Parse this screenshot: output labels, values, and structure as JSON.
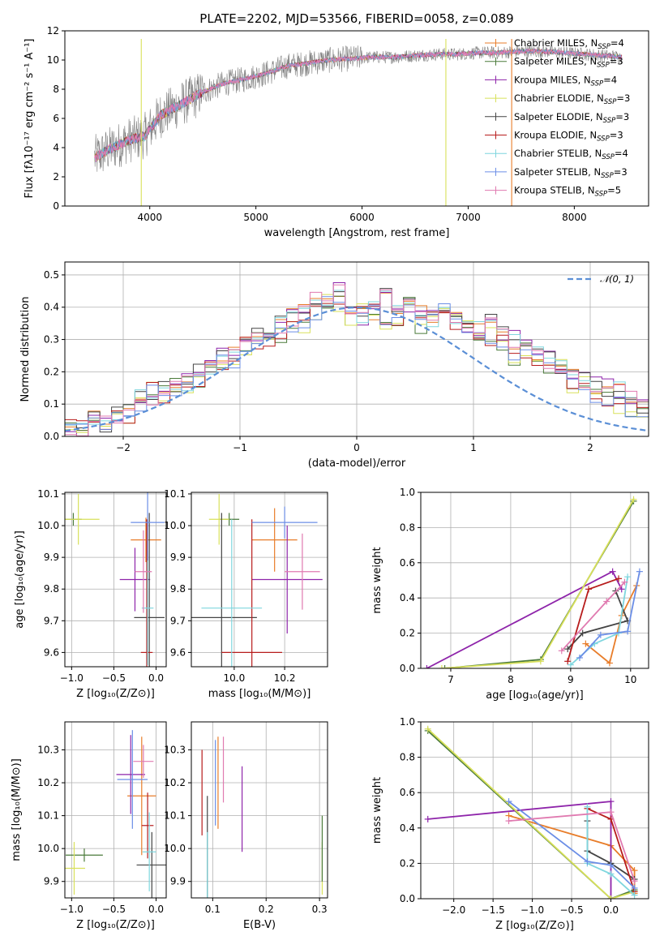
{
  "colors": [
    "#e87d2a",
    "#4a7a3a",
    "#8e24aa",
    "#d8e05a",
    "#444444",
    "#b71c1c",
    "#7fd6de",
    "#6b8ee6",
    "#e07ab0"
  ],
  "chart_data": [
    {
      "id": "spectrum",
      "type": "line",
      "title": "PLATE=2202, MJD=53566, FIBERID=0058, z=0.089",
      "xlabel": "wavelength [Angstrom, rest frame]",
      "ylabel": "Flux [fλ10⁻¹⁷ erg cm⁻² s⁻¹ A⁻¹]",
      "xlim": [
        3200,
        8700
      ],
      "ylim": [
        0,
        12
      ],
      "xticks": [
        4000,
        5000,
        6000,
        7000,
        8000
      ],
      "yticks": [
        0,
        2,
        4,
        6,
        8,
        10,
        12
      ],
      "grid": false,
      "legend_position": "top-right",
      "data_range": [
        3480,
        8450
      ],
      "continuum": {
        "x": [
          3480,
          3600,
          3800,
          3950,
          4100,
          4300,
          4500,
          4700,
          4900,
          5100,
          5300,
          5500,
          5700,
          5900,
          6100,
          6300,
          6500,
          6700,
          6900,
          7100,
          7300,
          7500,
          7700,
          7900,
          8100,
          8300,
          8450
        ],
        "y": [
          3.3,
          3.8,
          4.5,
          4.8,
          6.2,
          7.0,
          7.8,
          8.4,
          8.7,
          9.1,
          9.6,
          9.8,
          10.0,
          10.1,
          10.2,
          10.2,
          10.3,
          10.4,
          10.4,
          10.5,
          10.5,
          10.6,
          10.6,
          10.5,
          10.4,
          10.3,
          10.2
        ]
      },
      "series": [
        {
          "name": "Chabrier MILES, N_SSP=4",
          "label_main": "Chabrier MILES, N",
          "label_sub": "SSP",
          "label_tail": "=4"
        },
        {
          "name": "Salpeter MILES, N_SSP=3",
          "label_main": "Salpeter MILES, N",
          "label_sub": "SSP",
          "label_tail": "=3"
        },
        {
          "name": "Kroupa MILES, N_SSP=4",
          "label_main": "Kroupa MILES, N",
          "label_sub": "SSP",
          "label_tail": "=4"
        },
        {
          "name": "Chabrier ELODIE, N_SSP=3",
          "label_main": "Chabrier ELODIE, N",
          "label_sub": "SSP",
          "label_tail": "=3"
        },
        {
          "name": "Salpeter ELODIE, N_SSP=3",
          "label_main": "Salpeter ELODIE, N",
          "label_sub": "SSP",
          "label_tail": "=3"
        },
        {
          "name": "Kroupa ELODIE, N_SSP=3",
          "label_main": "Kroupa ELODIE, N",
          "label_sub": "SSP",
          "label_tail": "=3"
        },
        {
          "name": "Chabrier STELIB, N_SSP=4",
          "label_main": "Chabrier STELIB, N",
          "label_sub": "SSP",
          "label_tail": "=4"
        },
        {
          "name": "Salpeter STELIB, N_SSP=3",
          "label_main": "Salpeter STELIB, N",
          "label_sub": "SSP",
          "label_tail": "=3"
        },
        {
          "name": "Kroupa STELIB, N_SSP=5",
          "label_main": "Kroupa STELIB, N",
          "label_sub": "SSP",
          "label_tail": "=5"
        }
      ],
      "vertical_lines": [
        {
          "x": 3920,
          "color_index": 3
        },
        {
          "x": 6790,
          "color_index": 3
        },
        {
          "x": 7410,
          "color_index": 0
        }
      ]
    },
    {
      "id": "residuals",
      "type": "histogram",
      "xlabel": "(data-model)/error",
      "ylabel": "Normed distribution",
      "xlim": [
        -2.5,
        2.5
      ],
      "ylim": [
        0,
        0.54
      ],
      "xticks": [
        -2,
        -1,
        0,
        1,
        2
      ],
      "xtick_labels": [
        "−2",
        "−1",
        "0",
        "1",
        "2"
      ],
      "yticks": [
        0.0,
        0.1,
        0.2,
        0.3,
        0.4,
        0.5
      ],
      "grid": true,
      "bin_width": 0.1,
      "legend_label": "𝒩(0, 1)",
      "legend_position": "top-right",
      "bin_heights_by_series": [
        [
          0.03,
          0.02,
          0.05,
          0.04,
          0.07,
          0.09,
          0.12,
          0.11,
          0.14,
          0.15,
          0.17,
          0.2,
          0.21,
          0.25,
          0.27,
          0.29,
          0.31,
          0.33,
          0.35,
          0.37,
          0.39,
          0.43,
          0.4,
          0.45,
          0.41,
          0.37,
          0.39,
          0.44,
          0.38,
          0.4,
          0.39,
          0.36,
          0.4,
          0.36,
          0.35,
          0.33,
          0.36,
          0.31,
          0.3,
          0.28,
          0.26,
          0.24,
          0.22,
          0.19,
          0.18,
          0.16,
          0.15,
          0.14,
          0.11,
          0.09
        ],
        [
          0.04,
          0.03,
          0.04,
          0.05,
          0.06,
          0.07,
          0.1,
          0.14,
          0.13,
          0.15,
          0.16,
          0.18,
          0.22,
          0.23,
          0.24,
          0.28,
          0.3,
          0.29,
          0.32,
          0.35,
          0.34,
          0.38,
          0.42,
          0.41,
          0.36,
          0.4,
          0.38,
          0.34,
          0.37,
          0.42,
          0.34,
          0.36,
          0.41,
          0.35,
          0.33,
          0.3,
          0.31,
          0.29,
          0.25,
          0.26,
          0.23,
          0.2,
          0.22,
          0.16,
          0.17,
          0.13,
          0.12,
          0.1,
          0.09,
          0.08
        ]
      ],
      "density_curve": "standard_normal"
    },
    {
      "id": "age_vs_Z",
      "type": "errorbar",
      "xlabel": "Z [log₁₀(Z/Z⊙)]",
      "ylabel": "age  [log₁₀(age/yr)]",
      "xlim": [
        -1.08,
        0.12
      ],
      "ylim": [
        9.555,
        10.105
      ],
      "xticks": [
        -1.0,
        -0.5,
        0.0
      ],
      "xtick_labels": [
        "−1.0",
        "−0.5",
        "0.0"
      ],
      "yticks": [
        9.6,
        9.7,
        9.8,
        9.9,
        10.0,
        10.1
      ],
      "grid": true,
      "points": [
        {
          "x": -0.12,
          "y": 9.955,
          "xerr": 0.18,
          "yerr": 0.07,
          "color_index": 0
        },
        {
          "x": -0.98,
          "y": 10.02,
          "xerr": 0.1,
          "yerr": 0.02,
          "color_index": 1
        },
        {
          "x": -0.25,
          "y": 9.83,
          "xerr": 0.18,
          "yerr": 0.1,
          "color_index": 2
        },
        {
          "x": -0.92,
          "y": 10.02,
          "xerr": 0.25,
          "yerr": 0.08,
          "color_index": 3
        },
        {
          "x": -0.08,
          "y": 9.71,
          "xerr": 0.18,
          "yerr": 0.33,
          "color_index": 4
        },
        {
          "x": -0.11,
          "y": 9.6,
          "xerr": 0.07,
          "yerr": 0.42,
          "color_index": 5
        },
        {
          "x": -0.1,
          "y": 9.74,
          "xerr": 0.07,
          "yerr": 0.18,
          "color_index": 6
        },
        {
          "x": -0.1,
          "y": 10.01,
          "xerr": 0.2,
          "yerr": 0.12,
          "color_index": 7
        },
        {
          "x": -0.15,
          "y": 9.855,
          "xerr": 0.1,
          "yerr": 0.13,
          "color_index": 8
        }
      ]
    },
    {
      "id": "age_vs_mass",
      "type": "errorbar",
      "xlabel": "mass [log₁₀(M/M⊙)]",
      "ylabel": "",
      "xlim": [
        9.83,
        10.37
      ],
      "ylim": [
        9.555,
        10.105
      ],
      "xticks": [
        10.0,
        10.2
      ],
      "xtick_labels": [
        "10.0",
        "10.2"
      ],
      "yticks": [
        9.6,
        9.7,
        9.8,
        9.9,
        10.0,
        10.1
      ],
      "grid": true,
      "points": [
        {
          "x": 10.16,
          "y": 9.955,
          "xerr": 0.09,
          "yerr": 0.1,
          "color_index": 0
        },
        {
          "x": 9.98,
          "y": 10.02,
          "xerr": 0.04,
          "yerr": 0.02,
          "color_index": 1
        },
        {
          "x": 10.21,
          "y": 9.83,
          "xerr": 0.14,
          "yerr": 0.17,
          "color_index": 2
        },
        {
          "x": 9.94,
          "y": 10.02,
          "xerr": 0.04,
          "yerr": 0.08,
          "color_index": 3
        },
        {
          "x": 9.95,
          "y": 9.71,
          "xerr": 0.14,
          "yerr": 0.33,
          "color_index": 4
        },
        {
          "x": 10.07,
          "y": 9.6,
          "xerr": 0.12,
          "yerr": 0.42,
          "color_index": 5
        },
        {
          "x": 9.99,
          "y": 9.74,
          "xerr": 0.12,
          "yerr": 0.28,
          "color_index": 6
        },
        {
          "x": 10.2,
          "y": 10.01,
          "xerr": 0.13,
          "yerr": 0.05,
          "color_index": 7
        },
        {
          "x": 10.27,
          "y": 9.855,
          "xerr": 0.07,
          "yerr": 0.12,
          "color_index": 8
        }
      ]
    },
    {
      "id": "massweight_vs_age",
      "type": "line",
      "xlabel": "age  [log₁₀(age/yr)]",
      "ylabel": "mass weight",
      "xlim": [
        6.5,
        10.3
      ],
      "ylim": [
        0,
        1.0
      ],
      "xticks": [
        7,
        8,
        9,
        10
      ],
      "yticks": [
        0.0,
        0.2,
        0.4,
        0.6,
        0.8,
        1.0
      ],
      "grid": true,
      "series": [
        {
          "color_index": 0,
          "x": [
            9.25,
            9.65,
            9.85,
            10.1
          ],
          "y": [
            0.14,
            0.03,
            0.3,
            0.47
          ]
        },
        {
          "color_index": 1,
          "x": [
            6.9,
            8.5,
            10.05
          ],
          "y": [
            0.0,
            0.05,
            0.95
          ]
        },
        {
          "color_index": 2,
          "x": [
            6.6,
            9.7,
            9.85
          ],
          "y": [
            0.0,
            0.55,
            0.45
          ]
        },
        {
          "color_index": 3,
          "x": [
            6.85,
            8.5,
            10.05
          ],
          "y": [
            0.0,
            0.04,
            0.96
          ]
        },
        {
          "color_index": 4,
          "x": [
            8.95,
            9.2,
            9.95,
            9.75
          ],
          "y": [
            0.11,
            0.2,
            0.27,
            0.44
          ]
        },
        {
          "color_index": 5,
          "x": [
            8.95,
            9.3,
            9.8
          ],
          "y": [
            0.04,
            0.45,
            0.51
          ]
        },
        {
          "color_index": 6,
          "x": [
            9.0,
            9.4,
            9.8,
            9.95
          ],
          "y": [
            0.02,
            0.14,
            0.2,
            0.52
          ]
        },
        {
          "color_index": 7,
          "x": [
            9.15,
            9.5,
            9.95,
            10.15
          ],
          "y": [
            0.06,
            0.19,
            0.21,
            0.55
          ]
        },
        {
          "color_index": 8,
          "x": [
            8.85,
            9.6,
            9.9
          ],
          "y": [
            0.1,
            0.38,
            0.49
          ]
        }
      ]
    },
    {
      "id": "mass_vs_Z",
      "type": "errorbar",
      "xlabel": "Z [log₁₀(Z/Z⊙)]",
      "ylabel": "mass [log₁₀(M/M⊙)]",
      "xlim": [
        -1.08,
        0.12
      ],
      "ylim": [
        9.85,
        10.385
      ],
      "xticks": [
        -1.0,
        -0.5,
        0.0
      ],
      "xtick_labels": [
        "−1.0",
        "−0.5",
        "0.0"
      ],
      "yticks": [
        9.9,
        10.0,
        10.1,
        10.2,
        10.3
      ],
      "grid": true,
      "points": [
        {
          "x": -0.17,
          "y": 10.16,
          "xerr": 0.17,
          "yerr": 0.18,
          "color_index": 0
        },
        {
          "x": -0.85,
          "y": 9.98,
          "xerr": 0.22,
          "yerr": 0.02,
          "color_index": 1
        },
        {
          "x": -0.3,
          "y": 10.225,
          "xerr": 0.17,
          "yerr": 0.12,
          "color_index": 2
        },
        {
          "x": -0.97,
          "y": 9.94,
          "xerr": 0.13,
          "yerr": 0.08,
          "color_index": 3
        },
        {
          "x": -0.05,
          "y": 9.95,
          "xerr": 0.18,
          "yerr": 0.1,
          "color_index": 4
        },
        {
          "x": -0.1,
          "y": 10.07,
          "xerr": 0.07,
          "yerr": 0.1,
          "color_index": 5
        },
        {
          "x": -0.08,
          "y": 9.99,
          "xerr": 0.08,
          "yerr": 0.12,
          "color_index": 6
        },
        {
          "x": -0.28,
          "y": 10.21,
          "xerr": 0.18,
          "yerr": 0.15,
          "color_index": 7
        },
        {
          "x": -0.15,
          "y": 10.265,
          "xerr": 0.12,
          "yerr": 0.05,
          "color_index": 8
        }
      ]
    },
    {
      "id": "mass_vs_EBV",
      "type": "errorbar",
      "xlabel": "E(B-V)",
      "ylabel": "",
      "xlim": [
        0.06,
        0.315
      ],
      "ylim": [
        9.85,
        10.385
      ],
      "xticks": [
        0.1,
        0.2,
        0.3
      ],
      "xtick_labels": [
        "0.1",
        "0.2",
        "0.3"
      ],
      "yticks": [
        9.9,
        10.0,
        10.1,
        10.2,
        10.3
      ],
      "grid": true,
      "points": [
        {
          "x": 0.305,
          "y": 9.94,
          "xerr": 0,
          "yerr": 0.08,
          "color_index": 3
        },
        {
          "x": 0.305,
          "y": 10.0,
          "xerr": 0,
          "yerr": 0.1,
          "color_index": 1
        },
        {
          "x": 0.09,
          "y": 10.0,
          "xerr": 0,
          "yerr": 0.16,
          "color_index": 4
        },
        {
          "x": 0.08,
          "y": 10.17,
          "xerr": 0,
          "yerr": 0.13,
          "color_index": 5
        },
        {
          "x": 0.09,
          "y": 9.95,
          "xerr": 0,
          "yerr": 0.1,
          "color_index": 6
        },
        {
          "x": 0.105,
          "y": 10.2,
          "xerr": 0,
          "yerr": 0.13,
          "color_index": 7
        },
        {
          "x": 0.11,
          "y": 10.2,
          "xerr": 0,
          "yerr": 0.14,
          "color_index": 0
        },
        {
          "x": 0.12,
          "y": 10.24,
          "xerr": 0,
          "yerr": 0.1,
          "color_index": 8
        },
        {
          "x": 0.155,
          "y": 10.12,
          "xerr": 0,
          "yerr": 0.13,
          "color_index": 2
        }
      ]
    },
    {
      "id": "massweight_vs_Z",
      "type": "line",
      "xlabel": "Z [log₁₀(Z/Z⊙)]",
      "ylabel": "mass weight",
      "xlim": [
        -2.42,
        0.48
      ],
      "ylim": [
        0,
        1.0
      ],
      "xticks": [
        -2.0,
        -1.5,
        -1.0,
        -0.5,
        0.0
      ],
      "xtick_labels": [
        "−2.0",
        "−1.5",
        "−1.0",
        "−0.5",
        "0.0"
      ],
      "yticks": [
        0.0,
        0.2,
        0.4,
        0.6,
        0.8,
        1.0
      ],
      "grid": true,
      "series": [
        {
          "color_index": 0,
          "x": [
            -1.3,
            0.0,
            0.3,
            0.3
          ],
          "y": [
            0.47,
            0.3,
            0.16,
            0.03
          ]
        },
        {
          "color_index": 1,
          "x": [
            -2.33,
            0.0,
            0.3
          ],
          "y": [
            0.95,
            0.0,
            0.05
          ]
        },
        {
          "color_index": 2,
          "x": [
            -2.33,
            0.0,
            0.0
          ],
          "y": [
            0.45,
            0.55,
            0.0
          ]
        },
        {
          "color_index": 3,
          "x": [
            -2.33,
            0.0,
            0.3
          ],
          "y": [
            0.96,
            0.0,
            0.04
          ]
        },
        {
          "color_index": 4,
          "x": [
            -0.3,
            -0.3,
            0.0,
            0.3
          ],
          "y": [
            0.44,
            0.27,
            0.2,
            0.11
          ]
        },
        {
          "color_index": 5,
          "x": [
            -0.3,
            0.0,
            0.3
          ],
          "y": [
            0.51,
            0.45,
            0.04
          ]
        },
        {
          "color_index": 6,
          "x": [
            -0.3,
            -0.3,
            0.0,
            0.3
          ],
          "y": [
            0.52,
            0.2,
            0.14,
            0.02
          ]
        },
        {
          "color_index": 7,
          "x": [
            -1.3,
            -0.3,
            0.0,
            0.3
          ],
          "y": [
            0.55,
            0.21,
            0.19,
            0.06
          ]
        },
        {
          "color_index": 8,
          "x": [
            -1.3,
            0.0,
            0.3
          ],
          "y": [
            0.44,
            0.49,
            0.1
          ]
        }
      ]
    }
  ]
}
